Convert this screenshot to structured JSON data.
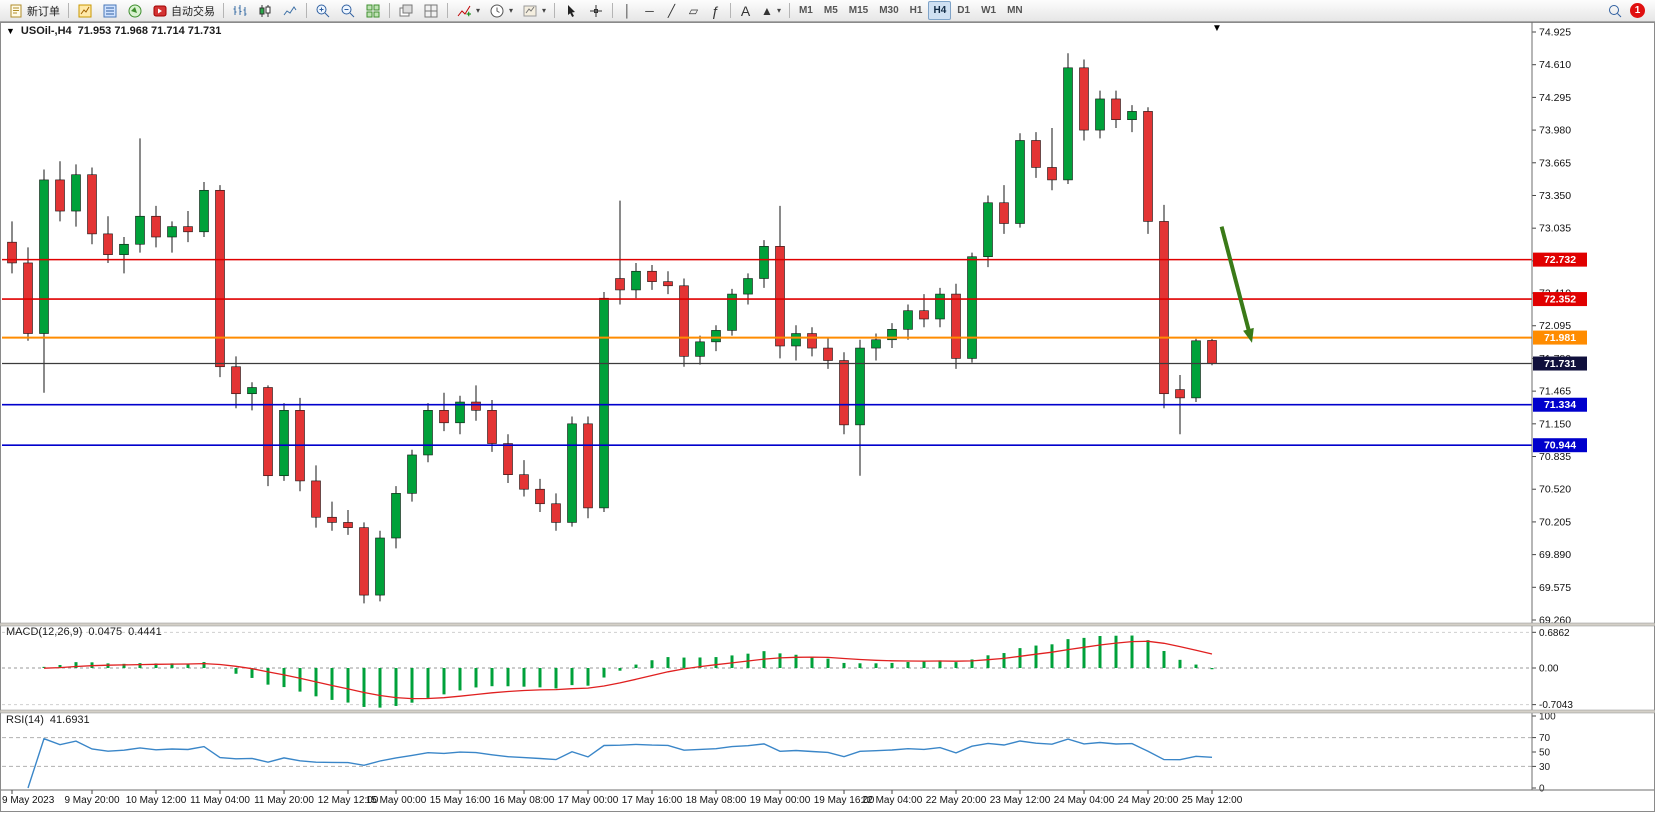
{
  "window": {
    "symbol_period": "USOil-,H4",
    "ohlc_line": "71.953 71.968 71.714 71.731"
  },
  "toolbar": {
    "new_order": "新订单",
    "autotrading": "自动交易",
    "timeframes": [
      "M1",
      "M5",
      "M15",
      "M30",
      "H1",
      "H4",
      "D1",
      "W1",
      "MN"
    ],
    "active_timeframe": "H4",
    "notification_count": "1"
  },
  "icons": {
    "dropdown": "▾",
    "down_triangle": "▼",
    "vline": "│",
    "hline": "─",
    "trendline": "╱",
    "channel": "▱",
    "fibonacci": "ƒ",
    "text_tool": "A",
    "crosshair": "+",
    "shapes": "▲"
  },
  "chart_data": {
    "type": "candlestick",
    "symbol": "USOil-",
    "timeframe": "H4",
    "ohlc_current": {
      "open": 71.953,
      "high": 71.968,
      "low": 71.714,
      "close": 71.731
    },
    "candles": [
      [
        72.9,
        73.1,
        72.6,
        72.7
      ],
      [
        72.7,
        72.85,
        71.95,
        72.02
      ],
      [
        72.02,
        73.6,
        71.45,
        73.5
      ],
      [
        73.5,
        73.68,
        73.1,
        73.2
      ],
      [
        73.2,
        73.65,
        73.05,
        73.55
      ],
      [
        73.55,
        73.62,
        72.88,
        72.98
      ],
      [
        72.98,
        73.15,
        72.7,
        72.78
      ],
      [
        72.78,
        72.95,
        72.6,
        72.88
      ],
      [
        72.88,
        73.9,
        72.8,
        73.15
      ],
      [
        73.15,
        73.25,
        72.85,
        72.95
      ],
      [
        72.95,
        73.1,
        72.8,
        73.05
      ],
      [
        73.05,
        73.2,
        72.9,
        73.0
      ],
      [
        73.0,
        73.48,
        72.95,
        73.4
      ],
      [
        73.4,
        73.45,
        71.6,
        71.7
      ],
      [
        71.7,
        71.8,
        71.3,
        71.44
      ],
      [
        71.44,
        71.55,
        71.28,
        71.5
      ],
      [
        71.5,
        71.52,
        70.55,
        70.65
      ],
      [
        70.65,
        71.35,
        70.6,
        71.28
      ],
      [
        71.28,
        71.4,
        70.5,
        70.6
      ],
      [
        70.6,
        70.75,
        70.15,
        70.25
      ],
      [
        70.25,
        70.4,
        70.12,
        70.2
      ],
      [
        70.2,
        70.32,
        70.08,
        70.15
      ],
      [
        70.15,
        70.2,
        69.42,
        69.5
      ],
      [
        69.5,
        70.12,
        69.44,
        70.05
      ],
      [
        70.05,
        70.55,
        69.95,
        70.48
      ],
      [
        70.48,
        70.9,
        70.4,
        70.85
      ],
      [
        70.85,
        71.35,
        70.78,
        71.28
      ],
      [
        71.28,
        71.45,
        71.08,
        71.16
      ],
      [
        71.16,
        71.42,
        71.05,
        71.36
      ],
      [
        71.36,
        71.52,
        71.18,
        71.28
      ],
      [
        71.28,
        71.38,
        70.88,
        70.96
      ],
      [
        70.96,
        71.05,
        70.58,
        70.66
      ],
      [
        70.66,
        70.8,
        70.45,
        70.52
      ],
      [
        70.52,
        70.62,
        70.3,
        70.38
      ],
      [
        70.38,
        70.48,
        70.12,
        70.2
      ],
      [
        70.2,
        71.22,
        70.16,
        71.15
      ],
      [
        71.15,
        71.22,
        70.24,
        70.34
      ],
      [
        70.34,
        72.42,
        70.3,
        72.36
      ],
      [
        72.55,
        73.3,
        72.3,
        72.44
      ],
      [
        72.44,
        72.7,
        72.36,
        72.62
      ],
      [
        72.62,
        72.68,
        72.44,
        72.52
      ],
      [
        72.52,
        72.62,
        72.4,
        72.48
      ],
      [
        72.48,
        72.55,
        71.7,
        71.8
      ],
      [
        71.8,
        72.0,
        71.72,
        71.94
      ],
      [
        71.94,
        72.1,
        71.85,
        72.05
      ],
      [
        72.05,
        72.45,
        72.0,
        72.4
      ],
      [
        72.4,
        72.6,
        72.3,
        72.55
      ],
      [
        72.55,
        72.92,
        72.46,
        72.86
      ],
      [
        72.86,
        73.25,
        71.78,
        71.9
      ],
      [
        71.9,
        72.1,
        71.76,
        72.02
      ],
      [
        72.02,
        72.08,
        71.8,
        71.88
      ],
      [
        71.88,
        71.98,
        71.68,
        71.76
      ],
      [
        71.76,
        71.84,
        71.05,
        71.14
      ],
      [
        71.14,
        71.96,
        70.65,
        71.88
      ],
      [
        71.88,
        72.02,
        71.76,
        71.96
      ],
      [
        71.96,
        72.12,
        71.88,
        72.06
      ],
      [
        72.06,
        72.3,
        71.96,
        72.24
      ],
      [
        72.24,
        72.4,
        72.08,
        72.16
      ],
      [
        72.16,
        72.46,
        72.08,
        72.4
      ],
      [
        72.4,
        72.5,
        71.68,
        71.78
      ],
      [
        71.78,
        72.8,
        71.74,
        72.76
      ],
      [
        72.76,
        73.35,
        72.66,
        73.28
      ],
      [
        73.28,
        73.45,
        72.98,
        73.08
      ],
      [
        73.08,
        73.95,
        73.04,
        73.88
      ],
      [
        73.88,
        73.96,
        73.52,
        73.62
      ],
      [
        73.62,
        74.0,
        73.4,
        73.5
      ],
      [
        73.5,
        74.72,
        73.46,
        74.58
      ],
      [
        74.58,
        74.66,
        73.88,
        73.98
      ],
      [
        73.98,
        74.36,
        73.9,
        74.28
      ],
      [
        74.28,
        74.36,
        74.0,
        74.08
      ],
      [
        74.08,
        74.22,
        73.96,
        74.16
      ],
      [
        74.16,
        74.2,
        72.98,
        73.1
      ],
      [
        73.1,
        73.26,
        71.3,
        71.44
      ],
      [
        71.48,
        71.62,
        71.05,
        71.4
      ],
      [
        71.4,
        71.97,
        71.36,
        71.95
      ],
      [
        71.953,
        71.968,
        71.714,
        71.731
      ]
    ],
    "time_axis": [
      "9 May 2023",
      "9 May 20:00",
      "10 May 12:00",
      "11 May 04:00",
      "11 May 20:00",
      "12 May 12:00",
      "15 May 00:00",
      "15 May 16:00",
      "16 May 08:00",
      "17 May 00:00",
      "17 May 16:00",
      "18 May 08:00",
      "19 May 00:00",
      "19 May 16:00",
      "22 May 04:00",
      "22 May 20:00",
      "23 May 12:00",
      "24 May 04:00",
      "24 May 20:00",
      "25 May 12:00"
    ],
    "time_ticks": [
      0,
      5,
      9,
      13,
      17,
      21,
      24,
      28,
      32,
      36,
      40,
      44,
      48,
      52,
      55,
      59,
      63,
      67,
      71,
      75
    ],
    "price_axis": [
      "74.925",
      "74.610",
      "74.295",
      "73.980",
      "73.665",
      "73.350",
      "73.035",
      "72.720",
      "72.410",
      "72.095",
      "71.780",
      "71.465",
      "71.150",
      "70.835",
      "70.520",
      "70.205",
      "69.890",
      "69.575",
      "69.260"
    ],
    "hlines": [
      {
        "price": 72.732,
        "color": "#e00000",
        "width": 1.6,
        "badge": "72.732",
        "badge_bg": "#e00000"
      },
      {
        "price": 72.352,
        "color": "#e00000",
        "width": 1.6,
        "badge": "72.352",
        "badge_bg": "#e00000"
      },
      {
        "price": 71.981,
        "color": "#ff8c00",
        "width": 2,
        "badge": "71.981",
        "badge_bg": "#ff8c00"
      },
      {
        "price": 71.731,
        "color": "#3c3c3c",
        "width": 1.2,
        "badge": "71.731",
        "badge_bg": "#10103c"
      },
      {
        "price": 71.334,
        "color": "#0000cc",
        "width": 1.6,
        "badge": "71.334",
        "badge_bg": "#0000cc"
      },
      {
        "price": 70.944,
        "color": "#0000cc",
        "width": 1.6,
        "badge": "70.944",
        "badge_bg": "#0000cc"
      }
    ],
    "macd": {
      "label": "MACD(12,26,9)",
      "main_value": "0.0475",
      "signal_value": "0.4441",
      "fast": 12,
      "slow": 26,
      "signal": 9,
      "axis": [
        "0.6862",
        "0.00",
        "-0.7043"
      ]
    },
    "rsi": {
      "label": "RSI(14)",
      "value": "41.6931",
      "period": 14,
      "levels": [
        70,
        30
      ],
      "axis": [
        {
          "v": 100,
          "t": "100"
        },
        {
          "v": 70,
          "t": "70"
        },
        {
          "v": 50,
          "t": "50"
        },
        {
          "v": 30,
          "t": "30"
        },
        {
          "v": 0,
          "t": "0"
        }
      ]
    },
    "arrow": {
      "i1": 75.6,
      "p1": 73.05,
      "i2": 77.5,
      "p2": 71.93,
      "color": "#3a7a18"
    },
    "colors": {
      "up": "#00a13a",
      "down": "#e33434",
      "wick": "#151515",
      "macd_hist": "#00a13a",
      "macd_signal": "#e02020",
      "rsi_line": "#3a86c8",
      "background": "#ffffff"
    }
  }
}
